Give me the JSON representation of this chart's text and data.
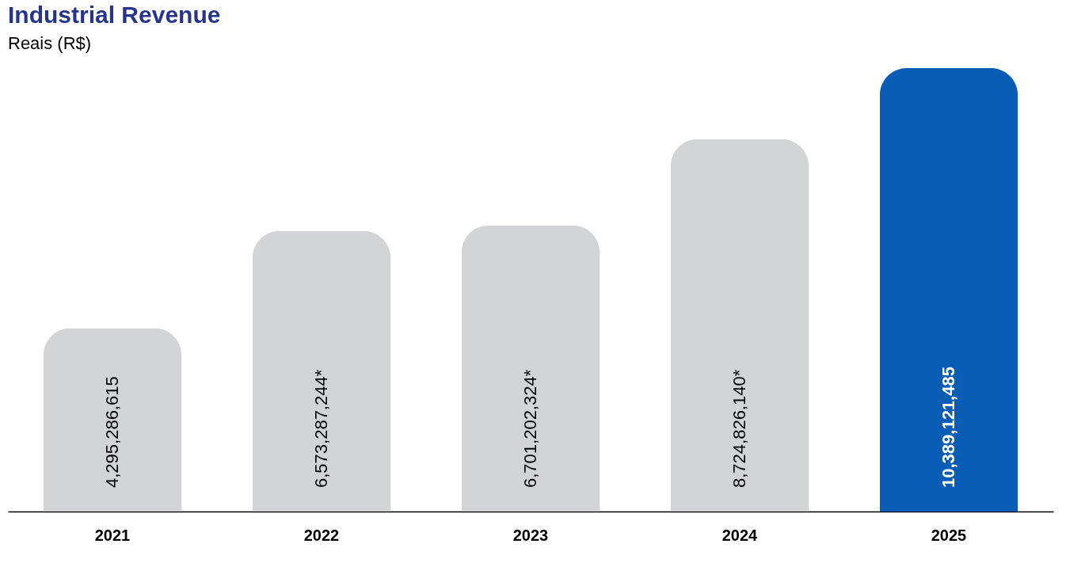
{
  "chart_data": {
    "type": "bar",
    "title": "Industrial Revenue",
    "subtitle": "Reais (R$)",
    "categories": [
      "2021",
      "2022",
      "2023",
      "2024",
      "2025"
    ],
    "values": [
      4295286615,
      6573287244,
      6701202324,
      8724826140,
      10389121485
    ],
    "value_labels": [
      "4,295,286,615",
      "6,573,287,244*",
      "6,701,202,324*",
      "8,724,826,140*",
      "10,389,121,485"
    ],
    "colors": [
      "#d3d4d6",
      "#d3d4d6",
      "#d3d4d6",
      "#d3d4d6",
      "#0a5db5"
    ],
    "grid": false
  }
}
